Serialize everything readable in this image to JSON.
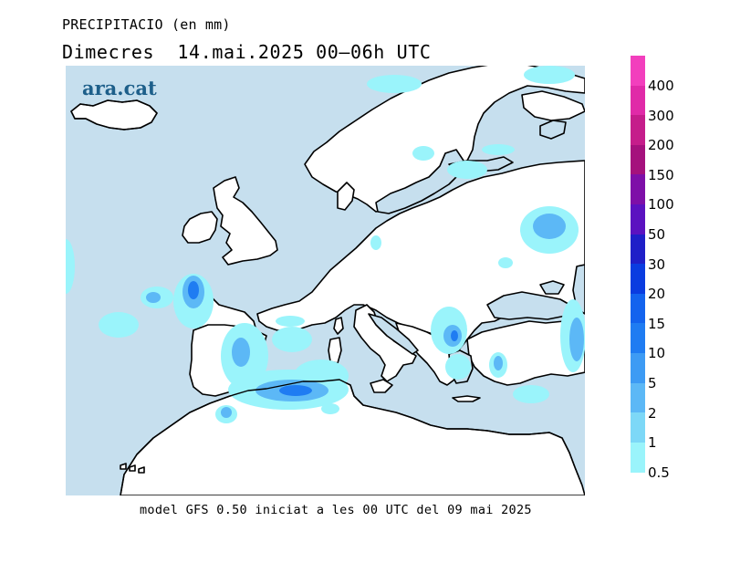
{
  "header": {
    "variable": "PRECIPITACIO (en mm)",
    "period": "Dimecres  14.mai.2025 00–06h UTC"
  },
  "watermark": "ara.cat",
  "footer": "model GFS 0.50 iniciat a les 00 UTC del 09 mai 2025",
  "legend": {
    "ticks": [
      "400",
      "300",
      "200",
      "150",
      "100",
      "50",
      "30",
      "20",
      "15",
      "10",
      "5",
      "2",
      "1",
      "0.5"
    ],
    "colors": [
      "#f23fbd",
      "#e02aa8",
      "#c51d8b",
      "#a5117d",
      "#7e0fa8",
      "#5b12c0",
      "#1f1fc8",
      "#0a3ce0",
      "#1363ee",
      "#1f7cf2",
      "#3d9bf4",
      "#5cb8f6",
      "#7dd8f7",
      "#9af4fb"
    ]
  },
  "map": {
    "sea_color": "#c6dfee",
    "land_color": "#ffffff",
    "coast_color": "#000000"
  }
}
